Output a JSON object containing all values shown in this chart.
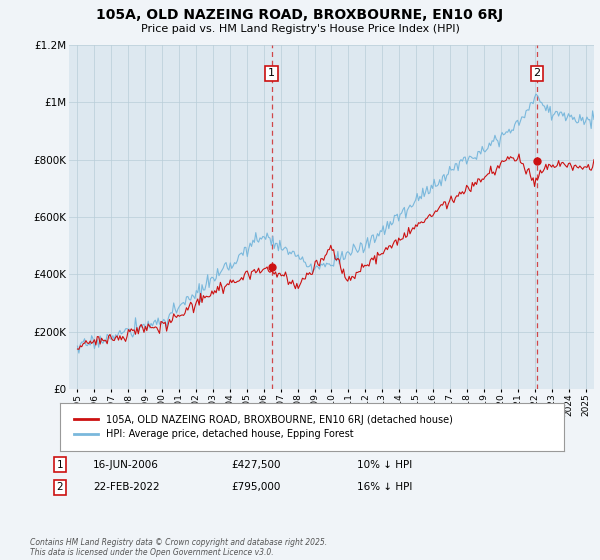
{
  "title": "105A, OLD NAZEING ROAD, BROXBOURNE, EN10 6RJ",
  "subtitle": "Price paid vs. HM Land Registry's House Price Index (HPI)",
  "background_color": "#f0f4f8",
  "plot_bg_color": "#dde8f0",
  "grid_color": "#b8cdd8",
  "hpi_color": "#7ab8dc",
  "price_color": "#cc1111",
  "ylim": [
    0,
    1200000
  ],
  "yticks": [
    0,
    200000,
    400000,
    600000,
    800000,
    1000000,
    1200000
  ],
  "ytick_labels": [
    "£0",
    "£200K",
    "£400K",
    "£600K",
    "£800K",
    "£1M",
    "£1.2M"
  ],
  "xmin_year": 1995,
  "xmax_year": 2025,
  "xtick_years": [
    1995,
    1996,
    1997,
    1998,
    1999,
    2000,
    2001,
    2002,
    2003,
    2004,
    2005,
    2006,
    2007,
    2008,
    2009,
    2010,
    2011,
    2012,
    2013,
    2014,
    2015,
    2016,
    2017,
    2018,
    2019,
    2020,
    2021,
    2022,
    2023,
    2024,
    2025
  ],
  "sale1_date": 2006.46,
  "sale1_price": 427500,
  "sale1_label": "1",
  "sale2_date": 2022.13,
  "sale2_price": 795000,
  "sale2_label": "2",
  "legend1_label": "105A, OLD NAZEING ROAD, BROXBOURNE, EN10 6RJ (detached house)",
  "legend2_label": "HPI: Average price, detached house, Epping Forest",
  "ann1_date": "16-JUN-2006",
  "ann1_price": "£427,500",
  "ann1_hpi": "10% ↓ HPI",
  "ann2_date": "22-FEB-2022",
  "ann2_price": "£795,000",
  "ann2_hpi": "16% ↓ HPI",
  "footer": "Contains HM Land Registry data © Crown copyright and database right 2025.\nThis data is licensed under the Open Government Licence v3.0."
}
